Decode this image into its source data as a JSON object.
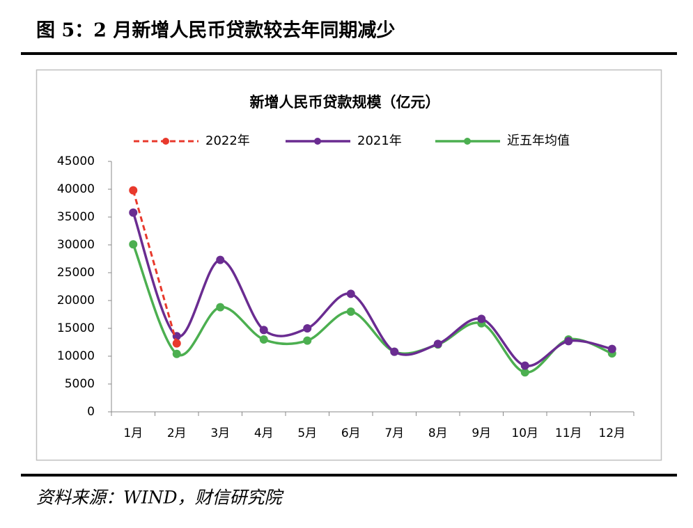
{
  "figure_title": "图 5：2 月新增人民币贷款较去年同期减少",
  "source": "资料来源：WIND，财信研究院",
  "chart_data": {
    "type": "line",
    "title": "新增人民币贷款规模（亿元）",
    "categories": [
      "1月",
      "2月",
      "3月",
      "4月",
      "5月",
      "6月",
      "7月",
      "8月",
      "9月",
      "10月",
      "11月",
      "12月"
    ],
    "series": [
      {
        "name": "2022年",
        "color": "#e8392c",
        "dashed": true,
        "values": [
          39800,
          12300,
          null,
          null,
          null,
          null,
          null,
          null,
          null,
          null,
          null,
          null
        ]
      },
      {
        "name": "2021年",
        "color": "#6a2c91",
        "values": [
          35800,
          13600,
          27300,
          14700,
          15000,
          21200,
          10800,
          12200,
          16700,
          8300,
          12700,
          11300
        ]
      },
      {
        "name": "近五年均值",
        "color": "#4caf50",
        "values": [
          30100,
          10400,
          18800,
          13000,
          12800,
          18000,
          10800,
          12100,
          15900,
          7100,
          13000,
          10500
        ]
      }
    ],
    "ylim": [
      0,
      45000
    ],
    "yticks": [
      0,
      5000,
      10000,
      15000,
      20000,
      25000,
      30000,
      35000,
      40000,
      45000
    ],
    "legend": "top"
  }
}
